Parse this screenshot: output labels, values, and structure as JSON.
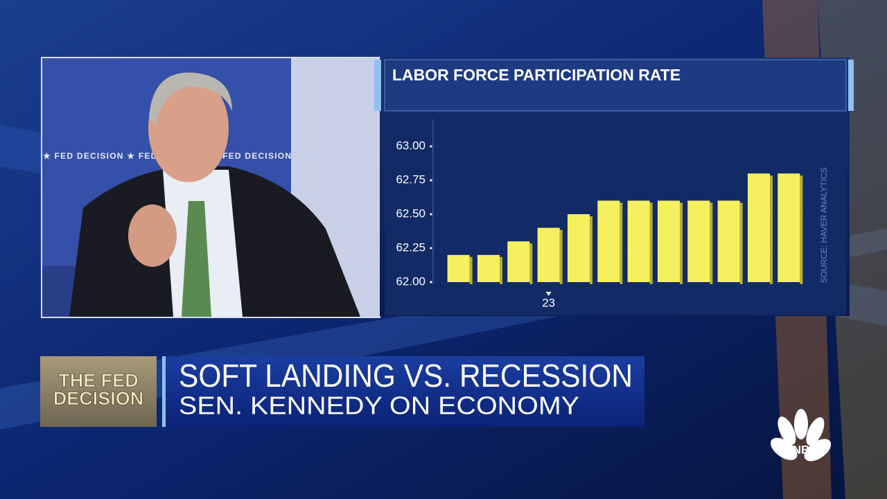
{
  "chart_data": {
    "type": "bar",
    "title": "LABOR FORCE PARTICIPATION RATE",
    "source": "SOURCE: HAVER ANALYTICS",
    "categories": [
      null,
      null,
      null,
      "23",
      null,
      null,
      null,
      null,
      null,
      null,
      null,
      null
    ],
    "values": [
      62.2,
      62.2,
      62.3,
      62.4,
      62.5,
      62.6,
      62.6,
      62.6,
      62.6,
      62.6,
      62.8,
      62.8
    ],
    "color": "#f4f060",
    "ylim": [
      62,
      63.2
    ],
    "yticks": [
      {
        "value": 62,
        "label": "62.00"
      },
      {
        "value": 62.25,
        "label": "62.25"
      },
      {
        "value": 62.5,
        "label": "62.50"
      },
      {
        "value": 62.75,
        "label": "62.75"
      },
      {
        "value": 63,
        "label": "63.00"
      }
    ]
  },
  "backdrop": "★ FED DECISION ★ FED DECISION ★ FED DECISION",
  "bug": {
    "line1": "THE FED",
    "line2": "DECISION"
  },
  "lower_third": {
    "headline": "SOFT LANDING VS. RECESSION",
    "subline": "SEN. KENNEDY ON ECONOMY"
  },
  "logo": "CNBC"
}
